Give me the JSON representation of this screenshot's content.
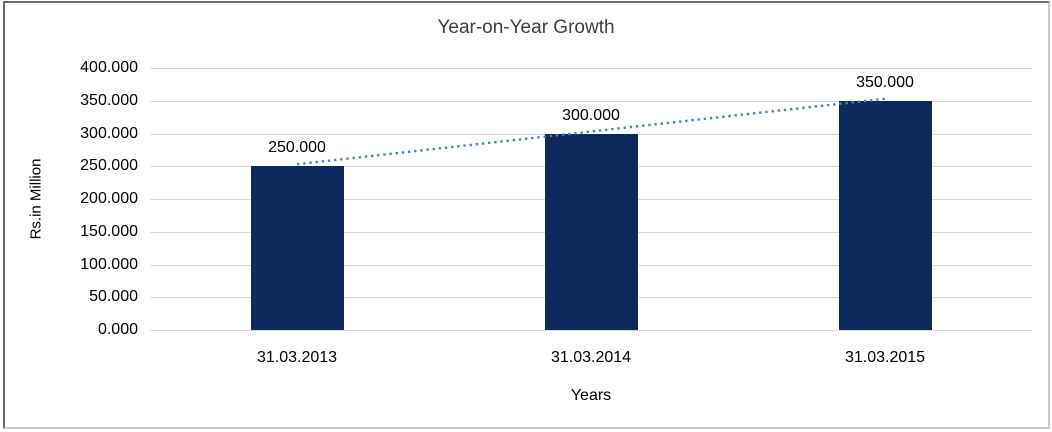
{
  "colors": {
    "bar": "#0E2A5C",
    "trendline": "#4F81BD",
    "gridline": "#D9D9D9",
    "title_text": "#3F3F3F",
    "axis_text": "#000000",
    "frame_dark": "#6B6B6B",
    "frame_light": "#C9C9C9",
    "background": "#FFFFFF"
  },
  "chart_data": {
    "type": "bar",
    "title": "Year-on-Year Growth",
    "xlabel": "Years",
    "ylabel": "Rs.in Million",
    "categories": [
      "31.03.2013",
      "31.03.2014",
      "31.03.2015"
    ],
    "values": [
      250,
      300,
      350
    ],
    "value_labels": [
      "250.000",
      "300.000",
      "350.000"
    ],
    "y_ticks": [
      "0.000",
      "50.000",
      "100.000",
      "150.000",
      "200.000",
      "250.000",
      "300.000",
      "350.000",
      "400.000"
    ],
    "ylim": [
      0,
      400
    ],
    "ytick_step": 50,
    "grid": true,
    "legend": false,
    "trendline": {
      "present": true,
      "style": "dotted",
      "color": "#4F81BD",
      "from_value": 250,
      "to_value": 350
    }
  }
}
